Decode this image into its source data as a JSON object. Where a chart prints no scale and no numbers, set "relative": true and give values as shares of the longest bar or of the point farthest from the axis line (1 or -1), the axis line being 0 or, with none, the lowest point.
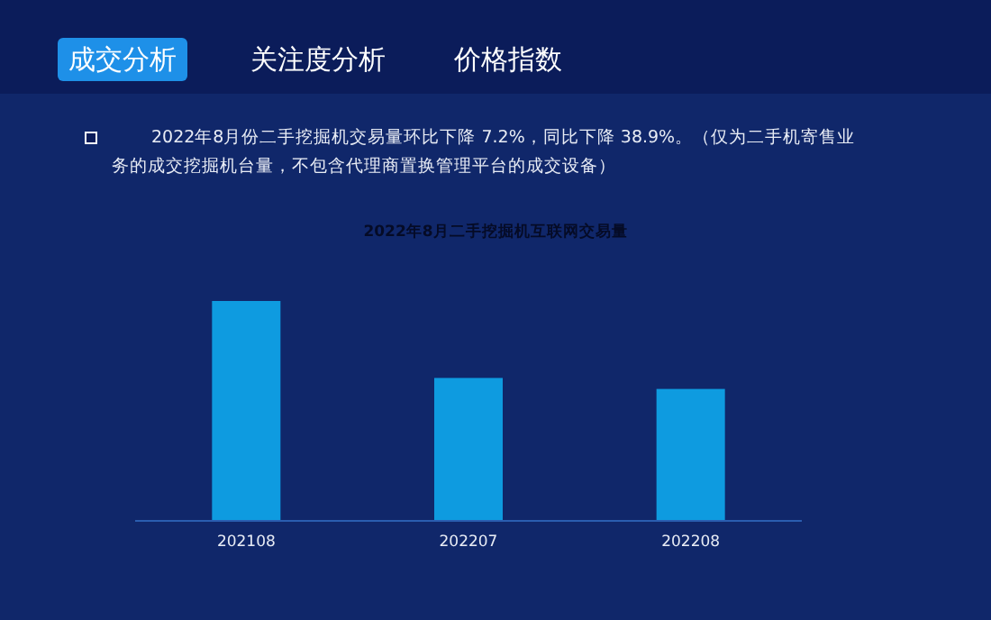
{
  "chart_data": {
    "type": "bar",
    "title": "2022年8月二手挖掘机互联网交易量",
    "relative": true,
    "categories": [
      "202108",
      "202207",
      "202208"
    ],
    "values": [
      1,
      0.65,
      0.6
    ],
    "color": "#0e9be0",
    "annotations": [
      "成交分析",
      "关注度分析",
      "价格指数",
      "2022年8月份二手挖掘机交易量环比下降 7.2%，同比下降 38.9%。（仅为二手机寄售业务的成交挖掘机台量，不包含代理商置换管理平台的成交设备）"
    ]
  }
}
